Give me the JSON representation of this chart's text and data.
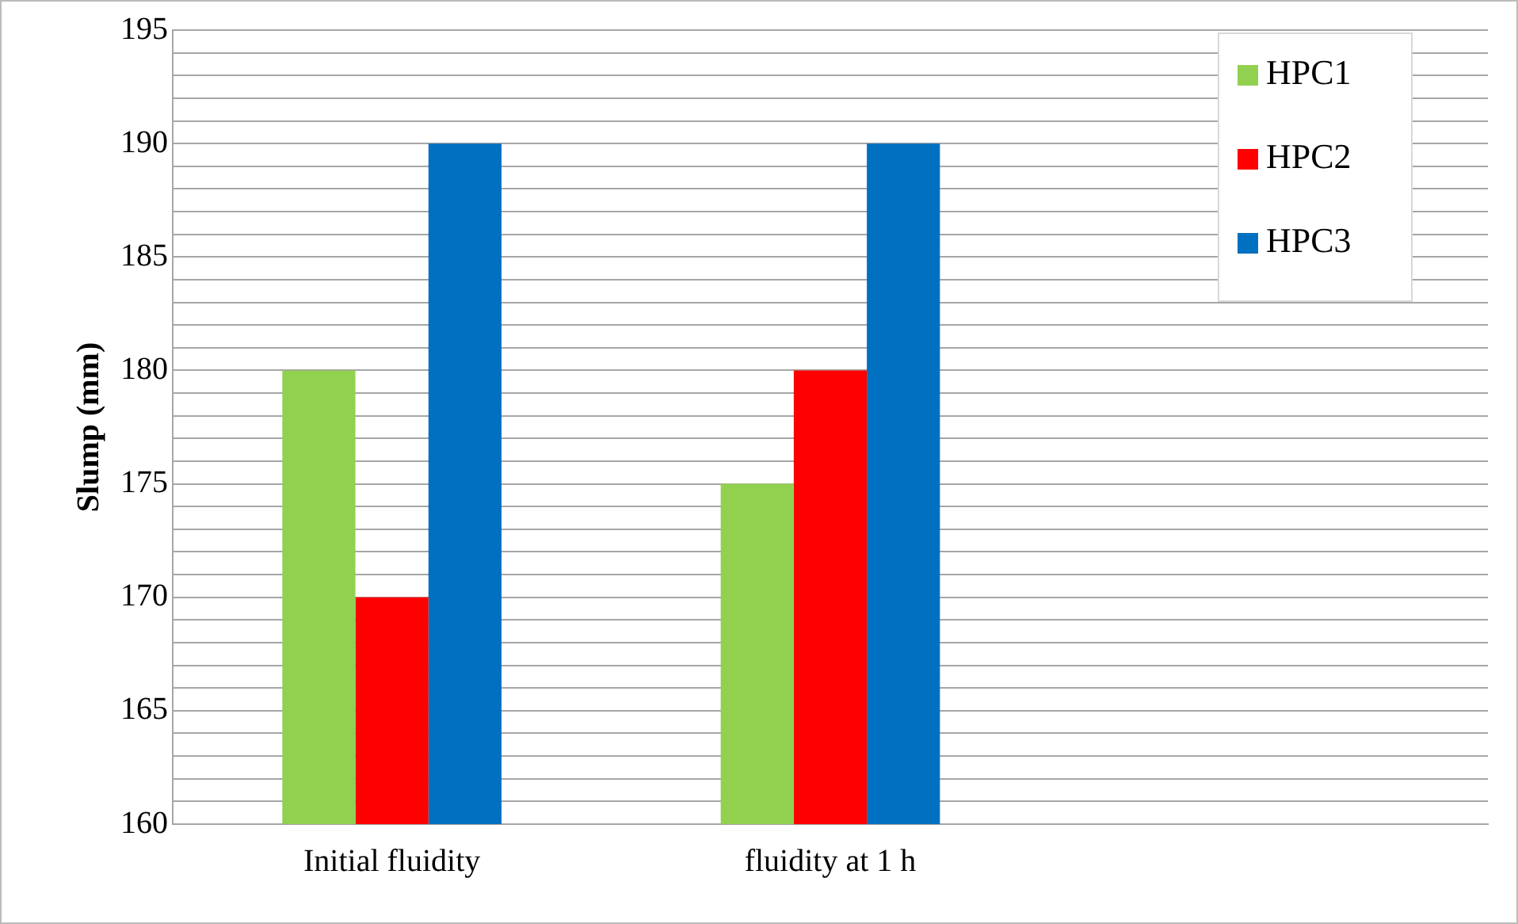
{
  "chart_data": {
    "type": "bar",
    "ylabel": "Slump (mm)",
    "categories": [
      "Initial fluidity",
      "fluidity at 1 h",
      null
    ],
    "series": [
      {
        "name": "HPC1",
        "color": "#92d050",
        "values": [
          180,
          175,
          null
        ]
      },
      {
        "name": "HPC2",
        "color": "#ff0000",
        "values": [
          170,
          180,
          null
        ]
      },
      {
        "name": "HPC3",
        "color": "#0070c0",
        "values": [
          190,
          190,
          null
        ]
      }
    ],
    "ylim": [
      160,
      195
    ],
    "yticks": [
      160,
      {
        "value": 161,
        "label": null
      },
      {
        "value": 162,
        "label": null
      },
      {
        "value": 163,
        "label": null
      },
      {
        "value": 164,
        "label": null
      },
      165,
      {
        "value": 166,
        "label": null
      },
      {
        "value": 167,
        "label": null
      },
      {
        "value": 168,
        "label": null
      },
      {
        "value": 169,
        "label": null
      },
      170,
      {
        "value": 171,
        "label": null
      },
      {
        "value": 172,
        "label": null
      },
      {
        "value": 173,
        "label": null
      },
      {
        "value": 174,
        "label": null
      },
      175,
      {
        "value": 176,
        "label": null
      },
      {
        "value": 177,
        "label": null
      },
      {
        "value": 178,
        "label": null
      },
      {
        "value": 179,
        "label": null
      },
      180,
      {
        "value": 181,
        "label": null
      },
      {
        "value": 182,
        "label": null
      },
      {
        "value": 183,
        "label": null
      },
      {
        "value": 184,
        "label": null
      },
      185,
      {
        "value": 186,
        "label": null
      },
      {
        "value": 187,
        "label": null
      },
      {
        "value": 188,
        "label": null
      },
      {
        "value": 189,
        "label": null
      },
      190,
      {
        "value": 191,
        "label": null
      },
      {
        "value": 192,
        "label": null
      },
      {
        "value": 193,
        "label": null
      },
      {
        "value": 194,
        "label": null
      },
      195
    ],
    "grid": "y",
    "legend": "top right"
  }
}
